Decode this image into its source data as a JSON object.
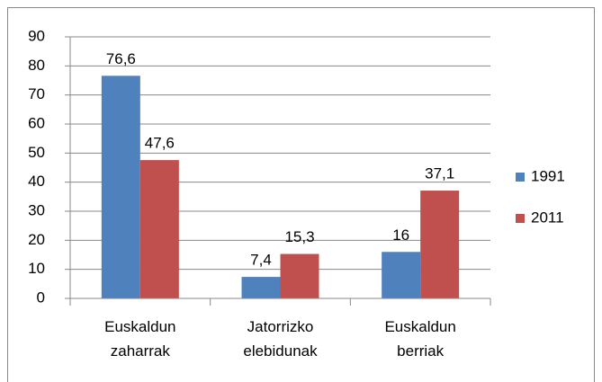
{
  "chart_data": {
    "type": "bar",
    "categories": [
      "Euskaldun zaharrak",
      "Jatorrizko elebidunak",
      "Euskaldun berriak"
    ],
    "series": [
      {
        "name": "1991",
        "color": "#4f81bd",
        "values": [
          76.6,
          7.4,
          16
        ],
        "value_labels": [
          "76,6",
          "7,4",
          "16"
        ]
      },
      {
        "name": "2011",
        "color": "#c0504d",
        "values": [
          47.6,
          15.3,
          37.1
        ],
        "value_labels": [
          "47,6",
          "15,3",
          "37,1"
        ]
      }
    ],
    "ylim": [
      0,
      90
    ],
    "yticks": [
      0,
      10,
      20,
      30,
      40,
      50,
      60,
      70,
      80,
      90
    ],
    "grid": true,
    "legend": "right"
  }
}
